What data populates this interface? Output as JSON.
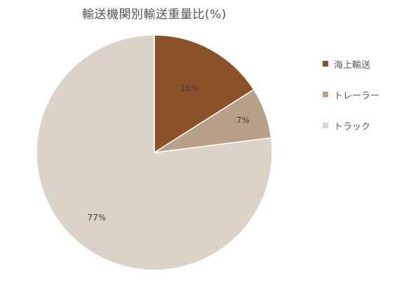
{
  "chart_data": {
    "type": "pie",
    "title": "輸送機関別輸送重量比(%)",
    "categories": [
      "海上輸送",
      "トレーラー",
      "トラック"
    ],
    "values": [
      16,
      7,
      77
    ],
    "data_labels": [
      "16%",
      "7%",
      "77%"
    ],
    "colors": [
      "#8b5229",
      "#b89f88",
      "#dbd3c7"
    ],
    "start_angle": "12 o'clock",
    "direction": "clockwise",
    "legend": "right"
  }
}
